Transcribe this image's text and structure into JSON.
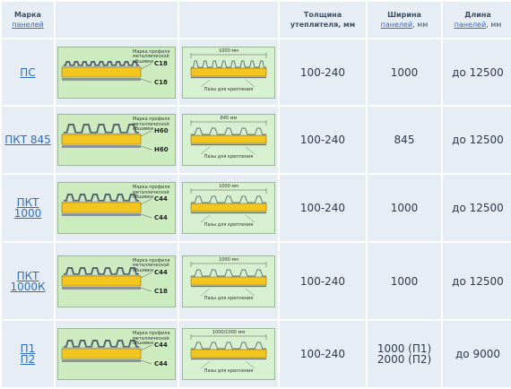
{
  "header": {
    "col_mark": {
      "title": "Марка",
      "link": "панелей"
    },
    "col_thickness": "Толщина утеплителя, мм",
    "col_width": {
      "title": "Ширина",
      "link": "панелей",
      "unit": ", мм"
    },
    "col_length": {
      "title": "Длина",
      "link": "панелей",
      "unit": ", мм"
    }
  },
  "drawing_text": {
    "brand_note": [
      "Марка профиля",
      "металлической",
      "обшивки"
    ],
    "fasteners": "Пазы для крепления"
  },
  "rows": [
    {
      "mark": [
        "ПС"
      ],
      "profiles": [
        "С18",
        "С18"
      ],
      "span_label": "1000 мм",
      "thickness": "100-240",
      "width": [
        "1000"
      ],
      "length": "до 12500"
    },
    {
      "mark": [
        "ПКТ 845"
      ],
      "profiles": [
        "Н60",
        "Н60"
      ],
      "span_label": "845 мм",
      "thickness": "100-240",
      "width": [
        "845"
      ],
      "length": "до 12500"
    },
    {
      "mark": [
        "ПКТ",
        "1000"
      ],
      "profiles": [
        "С44",
        "С44"
      ],
      "span_label": "1000 мм",
      "thickness": "100-240",
      "width": [
        "1000"
      ],
      "length": "до 12500"
    },
    {
      "mark": [
        "ПКТ",
        "1000К"
      ],
      "profiles": [
        "С44",
        "С18"
      ],
      "span_label": "1000 мм",
      "thickness": "100-240",
      "width": [
        "1000"
      ],
      "length": "до 12500"
    },
    {
      "mark": [
        "П1",
        "П2"
      ],
      "profiles": [
        "С44",
        "С44"
      ],
      "span_label": "1000/1000 мм",
      "thickness": "100-240",
      "width": [
        "1000 (П1)",
        "2000 (П2)"
      ],
      "length": "до 9000"
    }
  ],
  "colors": {
    "cell_bg": "#e7edf5",
    "link": "#2f6ec6",
    "drawing_bg": "#ccecc0",
    "insulation": "#f2c51f"
  }
}
